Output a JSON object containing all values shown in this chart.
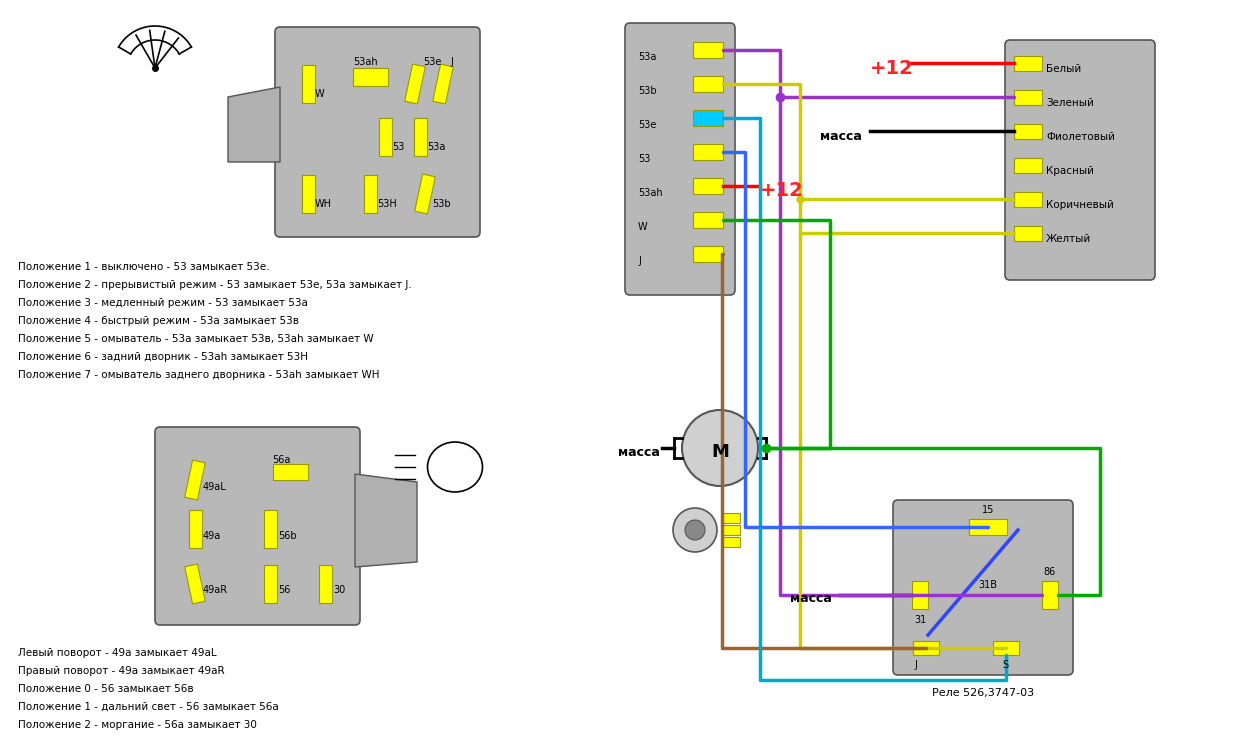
{
  "bg_color": "#ffffff",
  "wiper_text": [
    "Положение 1 - выключено - 53 замыкает 53e.",
    "Положение 2 - прерывистый режим - 53 замыкает 53e, 53a замыкает J.",
    "Положение 3 - медленный режим - 53 замыкает 53a",
    "Положение 4 - быстрый режим - 53a замыкает 53в",
    "Положение 5 - омыватель - 53a замыкает 53в, 53ah замыкает W",
    "Положение 6 - задний дворник - 53ah замыкает 53Н",
    "Положение 7 - омыватель заднего дворника - 53ah замыкает WH"
  ],
  "light_text": [
    "Левый поворот - 49a замыкает 49aL",
    "Правый поворот - 49a замыкает 49aR",
    "Положение 0 - 56 замыкает 56в",
    "Положение 1 - дальний свет - 56 замыкает 56a",
    "Положение 2 - моргание - 56a замыкает 30"
  ],
  "wire_colors": {
    "purple": "#9933cc",
    "yellow": "#cccc00",
    "green": "#00aa00",
    "blue": "#3366ff",
    "brown": "#996633",
    "red": "#ff0000",
    "cyan": "#00aacc",
    "black": "#000000"
  }
}
